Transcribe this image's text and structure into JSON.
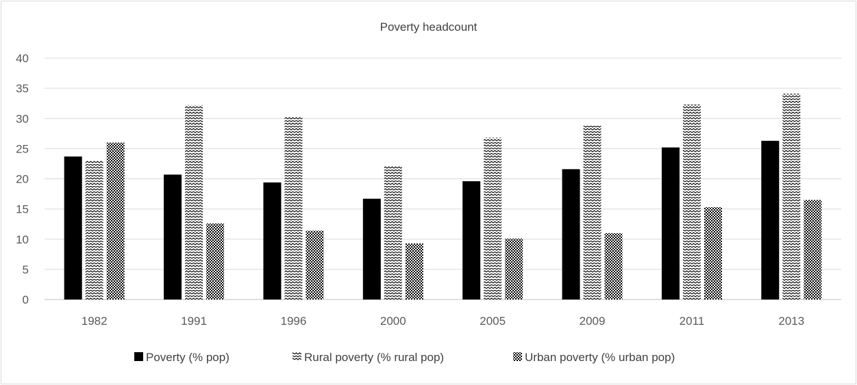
{
  "chart_data": {
    "type": "bar",
    "title": "Poverty headcount",
    "xlabel": "",
    "ylabel": "",
    "categories": [
      "1982",
      "1991",
      "1996",
      "2000",
      "2005",
      "2009",
      "2011",
      "2013"
    ],
    "ylim": [
      0,
      40
    ],
    "yticks": [
      0,
      5,
      10,
      15,
      20,
      25,
      30,
      35,
      40
    ],
    "grid": true,
    "legend_position": "bottom",
    "series": [
      {
        "name": "Poverty  (% pop)",
        "fill": "solid",
        "color": "#000000",
        "values": [
          23.7,
          20.7,
          19.4,
          16.7,
          19.6,
          21.6,
          25.2,
          26.3
        ]
      },
      {
        "name": "Rural poverty  (% rural pop)",
        "fill": "wave",
        "color": "#000000",
        "values": [
          23.0,
          32.2,
          30.3,
          22.1,
          26.8,
          28.9,
          32.3,
          34.1
        ]
      },
      {
        "name": "Urban poverty  (% urban pop)",
        "fill": "checker",
        "color": "#000000",
        "values": [
          26.0,
          12.6,
          11.4,
          9.3,
          10.1,
          11.0,
          15.3,
          16.5
        ]
      }
    ]
  }
}
